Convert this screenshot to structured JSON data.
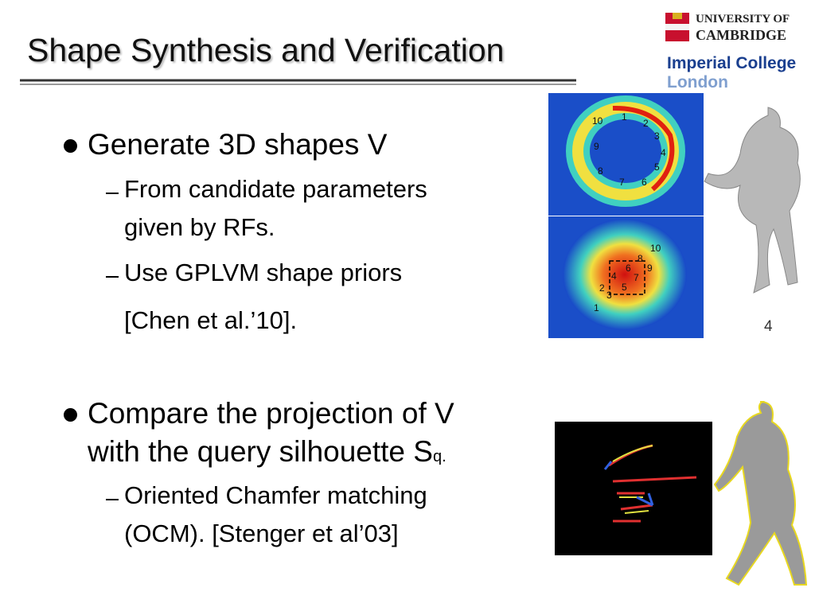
{
  "title": "Shape Synthesis and Verification",
  "logos": {
    "cambridge": [
      "UNIVERSITY OF",
      "CAMBRIDGE"
    ],
    "imperial": [
      "Imperial College",
      "London"
    ]
  },
  "bullets": [
    {
      "text": "Generate 3D shapes V",
      "sub": [
        {
          "lines": [
            "From candidate parameters",
            "given by RFs."
          ]
        },
        {
          "lines": [
            "Use GPLVM shape priors",
            "[Chen et al.’10]."
          ]
        }
      ]
    },
    {
      "lines": [
        "Compare the projection of V",
        "with the query silhouette S"
      ],
      "subscript": "q.",
      "sub": [
        {
          "lines": [
            "Oriented Chamfer matching",
            "(OCM). [Stenger et al’03]"
          ]
        }
      ]
    }
  ],
  "figures": {
    "ring_labels": [
      "1",
      "2",
      "3",
      "4",
      "5",
      "6",
      "7",
      "8",
      "9",
      "10"
    ],
    "blob_labels": [
      "1",
      "2",
      "3",
      "4",
      "5",
      "6",
      "7",
      "8",
      "9",
      "10"
    ],
    "figure_label": "4"
  }
}
